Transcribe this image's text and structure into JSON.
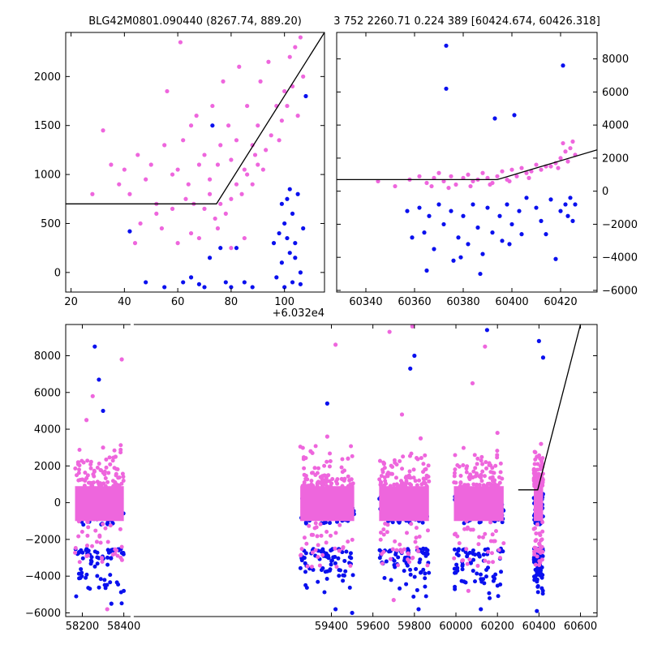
{
  "chart_data": [
    {
      "type": "scatter",
      "title": "BLG42M0801.090440 (8267.74, 889.20)",
      "x_offset_label": "+6.032e4",
      "xlim": [
        18,
        115
      ],
      "ylim": [
        -200,
        2450
      ],
      "x_ticks": [
        20,
        40,
        60,
        80,
        100
      ],
      "y_ticks": [
        0,
        500,
        1000,
        1500,
        2000
      ],
      "series": [
        {
          "color": "#ee66dd",
          "points": [
            [
              28,
              800
            ],
            [
              32,
              1450
            ],
            [
              35,
              1100
            ],
            [
              38,
              900
            ],
            [
              40,
              1050
            ],
            [
              42,
              800
            ],
            [
              45,
              1200
            ],
            [
              48,
              950
            ],
            [
              50,
              1100
            ],
            [
              52,
              700
            ],
            [
              55,
              1300
            ],
            [
              56,
              1850
            ],
            [
              58,
              1000
            ],
            [
              60,
              1050
            ],
            [
              61,
              2350
            ],
            [
              62,
              1350
            ],
            [
              64,
              900
            ],
            [
              65,
              1500
            ],
            [
              67,
              1600
            ],
            [
              68,
              1100
            ],
            [
              70,
              1200
            ],
            [
              72,
              950
            ],
            [
              73,
              1700
            ],
            [
              75,
              1100
            ],
            [
              76,
              1300
            ],
            [
              77,
              1950
            ],
            [
              79,
              1500
            ],
            [
              80,
              1150
            ],
            [
              82,
              1350
            ],
            [
              83,
              2100
            ],
            [
              85,
              1050
            ],
            [
              86,
              1700
            ],
            [
              88,
              1300
            ],
            [
              89,
              1200
            ],
            [
              90,
              1500
            ],
            [
              91,
              1950
            ],
            [
              93,
              1250
            ],
            [
              94,
              2150
            ],
            [
              95,
              1400
            ],
            [
              97,
              1700
            ],
            [
              98,
              1350
            ],
            [
              99,
              1550
            ],
            [
              100,
              1850
            ],
            [
              101,
              1700
            ],
            [
              102,
              2200
            ],
            [
              103,
              1900
            ],
            [
              104,
              2300
            ],
            [
              105,
              1600
            ],
            [
              106,
              2400
            ],
            [
              107,
              2000
            ],
            [
              46,
              500
            ],
            [
              52,
              600
            ],
            [
              58,
              650
            ],
            [
              63,
              750
            ],
            [
              66,
              700
            ],
            [
              70,
              650
            ],
            [
              72,
              800
            ],
            [
              74,
              550
            ],
            [
              76,
              700
            ],
            [
              78,
              600
            ],
            [
              80,
              750
            ],
            [
              82,
              900
            ],
            [
              84,
              800
            ],
            [
              86,
              1000
            ],
            [
              88,
              900
            ],
            [
              90,
              1100
            ],
            [
              92,
              1050
            ],
            [
              44,
              300
            ],
            [
              54,
              450
            ],
            [
              60,
              300
            ],
            [
              65,
              400
            ],
            [
              68,
              350
            ],
            [
              75,
              450
            ],
            [
              80,
              250
            ],
            [
              85,
              350
            ]
          ]
        },
        {
          "color": "#0a10ee",
          "points": [
            [
              42,
              420
            ],
            [
              48,
              -100
            ],
            [
              55,
              -150
            ],
            [
              62,
              -100
            ],
            [
              65,
              -50
            ],
            [
              68,
              -120
            ],
            [
              70,
              -150
            ],
            [
              72,
              150
            ],
            [
              73,
              1500
            ],
            [
              76,
              250
            ],
            [
              78,
              -100
            ],
            [
              80,
              -150
            ],
            [
              82,
              250
            ],
            [
              85,
              -100
            ],
            [
              88,
              -150
            ],
            [
              96,
              300
            ],
            [
              98,
              400
            ],
            [
              99,
              100
            ],
            [
              100,
              500
            ],
            [
              101,
              750
            ],
            [
              102,
              200
            ],
            [
              103,
              600
            ],
            [
              104,
              300
            ],
            [
              105,
              800
            ],
            [
              106,
              0
            ],
            [
              107,
              450
            ],
            [
              108,
              1800
            ],
            [
              97,
              -50
            ],
            [
              100,
              -150
            ],
            [
              103,
              -100
            ],
            [
              106,
              -120
            ],
            [
              99,
              700
            ],
            [
              102,
              850
            ],
            [
              104,
              150
            ],
            [
              101,
              350
            ]
          ]
        }
      ],
      "lines": [
        {
          "color": "#000000",
          "points": [
            [
              18,
              700
            ],
            [
              74.5,
              700
            ],
            [
              115,
              2450
            ]
          ]
        }
      ]
    },
    {
      "type": "scatter",
      "title": "3 752 2260.71 0.224 389 [60424.674, 60426.318]",
      "xlim": [
        60328,
        60435
      ],
      "ylim": [
        -6100,
        9600
      ],
      "x_ticks": [
        60340,
        60360,
        60380,
        60400,
        60420
      ],
      "y_ticks": [
        -6000,
        -4000,
        -2000,
        0,
        2000,
        4000,
        6000,
        8000
      ],
      "series": [
        {
          "color": "#ee66dd",
          "points": [
            [
              60345,
              600
            ],
            [
              60352,
              300
            ],
            [
              60358,
              700
            ],
            [
              60362,
              900
            ],
            [
              60365,
              500
            ],
            [
              60368,
              800
            ],
            [
              60370,
              1100
            ],
            [
              60372,
              600
            ],
            [
              60375,
              900
            ],
            [
              60377,
              400
            ],
            [
              60380,
              800
            ],
            [
              60382,
              1000
            ],
            [
              60384,
              600
            ],
            [
              60386,
              700
            ],
            [
              60388,
              1100
            ],
            [
              60390,
              800
            ],
            [
              60392,
              500
            ],
            [
              60394,
              900
            ],
            [
              60396,
              1200
            ],
            [
              60398,
              700
            ],
            [
              60400,
              1300
            ],
            [
              60402,
              900
            ],
            [
              60404,
              1400
            ],
            [
              60406,
              1100
            ],
            [
              60408,
              1200
            ],
            [
              60410,
              1600
            ],
            [
              60412,
              1300
            ],
            [
              60414,
              1500
            ],
            [
              60418,
              1700
            ],
            [
              60420,
              2000
            ],
            [
              60422,
              2400
            ],
            [
              60423,
              1800
            ],
            [
              60424,
              2600
            ],
            [
              60425,
              3000
            ],
            [
              60426,
              2200
            ],
            [
              60419,
              1400
            ],
            [
              60421,
              2900
            ],
            [
              60367,
              300
            ],
            [
              60374,
              200
            ],
            [
              60383,
              300
            ],
            [
              60391,
              400
            ],
            [
              60399,
              600
            ],
            [
              60407,
              800
            ],
            [
              60416,
              1500
            ]
          ]
        },
        {
          "color": "#0a10ee",
          "points": [
            [
              60362,
              -1000
            ],
            [
              60364,
              -2500
            ],
            [
              60366,
              -1500
            ],
            [
              60368,
              -3500
            ],
            [
              60370,
              -800
            ],
            [
              60372,
              -2000
            ],
            [
              60373,
              8800
            ],
            [
              60373,
              6200
            ],
            [
              60375,
              -1200
            ],
            [
              60376,
              -4200
            ],
            [
              60378,
              -2800
            ],
            [
              60380,
              -1500
            ],
            [
              60382,
              -3200
            ],
            [
              60384,
              -800
            ],
            [
              60386,
              -2200
            ],
            [
              60387,
              -5000
            ],
            [
              60390,
              -1000
            ],
            [
              60392,
              -2500
            ],
            [
              60393,
              4400
            ],
            [
              60395,
              -1500
            ],
            [
              60396,
              -3000
            ],
            [
              60398,
              -800
            ],
            [
              60400,
              -2000
            ],
            [
              60401,
              4600
            ],
            [
              60403,
              -1200
            ],
            [
              60404,
              -2600
            ],
            [
              60406,
              -400
            ],
            [
              60410,
              -1000
            ],
            [
              60412,
              -1800
            ],
            [
              60414,
              -2600
            ],
            [
              60416,
              -500
            ],
            [
              60418,
              -4100
            ],
            [
              60420,
              -1200
            ],
            [
              60421,
              7600
            ],
            [
              60422,
              -800
            ],
            [
              60423,
              -1500
            ],
            [
              60424,
              -400
            ],
            [
              60425,
              -1800
            ],
            [
              60426,
              -800
            ],
            [
              60365,
              -4800
            ],
            [
              60379,
              -4000
            ],
            [
              60388,
              -3800
            ],
            [
              60399,
              -3200
            ],
            [
              60357,
              -1200
            ],
            [
              60359,
              -2800
            ]
          ]
        }
      ],
      "lines": [
        {
          "color": "#000000",
          "points": [
            [
              60328,
              700
            ],
            [
              60394,
              700
            ],
            [
              60435,
              2500
            ]
          ]
        }
      ]
    },
    {
      "type": "scatter",
      "xlim": [
        58120,
        60680
      ],
      "ylim": [
        -6200,
        9700
      ],
      "x_ticks": [
        58200,
        58400,
        59400,
        59600,
        59800,
        60000,
        60200,
        60400,
        60600
      ],
      "y_ticks": [
        -6000,
        -4000,
        -2000,
        0,
        2000,
        4000,
        6000,
        8000
      ],
      "axis_break_x": 58440,
      "axis_break_width": 3,
      "seasons": [
        [
          58165,
          58400
        ],
        [
          59250,
          59510
        ],
        [
          59630,
          59870
        ],
        [
          59990,
          60230
        ],
        [
          60375,
          60420
        ]
      ],
      "series": [
        {
          "color": "#0a10ee",
          "points": [
            [
              58260,
              8500
            ],
            [
              58280,
              6700
            ],
            [
              58300,
              5000
            ],
            [
              58340,
              -5500
            ],
            [
              59380,
              5400
            ],
            [
              59420,
              -5800
            ],
            [
              59500,
              -6000
            ],
            [
              59780,
              7300
            ],
            [
              59800,
              8000
            ],
            [
              59820,
              -5800
            ],
            [
              60150,
              9400
            ],
            [
              60120,
              -5800
            ],
            [
              60400,
              8800
            ],
            [
              60420,
              7900
            ],
            [
              60390,
              -5900
            ]
          ]
        },
        {
          "color": "#ee66dd",
          "points": [
            [
              58180,
              2200
            ],
            [
              58220,
              4500
            ],
            [
              58250,
              5800
            ],
            [
              58300,
              3000
            ],
            [
              58360,
              2500
            ],
            [
              58390,
              7800
            ],
            [
              59300,
              2800
            ],
            [
              59380,
              3600
            ],
            [
              59420,
              8600
            ],
            [
              59480,
              2400
            ],
            [
              59680,
              9300
            ],
            [
              59740,
              4800
            ],
            [
              59790,
              9600
            ],
            [
              59830,
              3500
            ],
            [
              60080,
              6500
            ],
            [
              60140,
              8500
            ],
            [
              60200,
              3800
            ],
            [
              60390,
              2500
            ],
            [
              60410,
              3200
            ],
            [
              59700,
              -5300
            ],
            [
              60060,
              -4800
            ],
            [
              58320,
              -5800
            ]
          ]
        }
      ],
      "lines": [
        {
          "color": "#000000",
          "points": [
            [
              60300,
              700
            ],
            [
              60394,
              700
            ],
            [
              60600,
              9700
            ]
          ]
        }
      ]
    }
  ]
}
